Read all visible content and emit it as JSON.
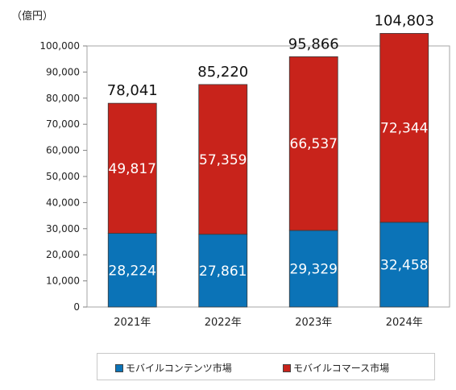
{
  "chart_data": {
    "type": "bar",
    "stacked": true,
    "unit_label": "（億円）",
    "categories": [
      "2021年",
      "2022年",
      "2023年",
      "2024年"
    ],
    "series": [
      {
        "name": "モバイルコンテンツ市場",
        "color": "#0b73b7",
        "values": [
          28224,
          27861,
          29329,
          32458
        ],
        "labels": [
          "28,224",
          "27,861",
          "29,329",
          "32,458"
        ]
      },
      {
        "name": "モバイルコマース市場",
        "color": "#c8231b",
        "values": [
          49817,
          57359,
          66537,
          72344
        ],
        "labels": [
          "49,817",
          "57,359",
          "66,537",
          "72,344"
        ]
      }
    ],
    "totals": [
      78041,
      85220,
      95866,
      104803
    ],
    "total_labels": [
      "78,041",
      "85,220",
      "95,866",
      "104,803"
    ],
    "ylim": [
      0,
      100000
    ],
    "yticks": [
      0,
      10000,
      20000,
      30000,
      40000,
      50000,
      60000,
      70000,
      80000,
      90000,
      100000
    ],
    "ytick_labels": [
      "0",
      "10,000",
      "20,000",
      "30,000",
      "40,000",
      "50,000",
      "60,000",
      "70,000",
      "80,000",
      "90,000",
      "100,000"
    ],
    "grid": false,
    "legend_position": "bottom"
  }
}
